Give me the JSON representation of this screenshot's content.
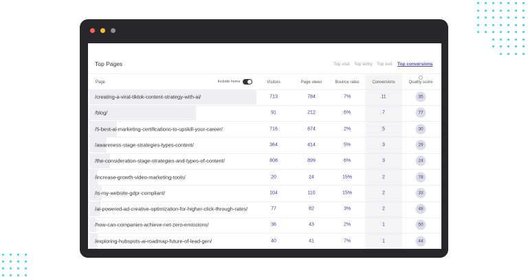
{
  "header": {
    "title": "Top Pages",
    "tabs": [
      "Top visit",
      "Top entry",
      "Top exit",
      "Top conversions"
    ],
    "toggle": "Include home"
  },
  "table": {
    "columns": [
      "Page",
      "Visitors",
      "Page views",
      "Bounce rates",
      "Conversions",
      "Quality score"
    ],
    "rows": [
      [
        "/creating-a-viral-tiktok-content-strategy-with-ai/",
        713,
        784,
        "7%",
        11,
        35
      ],
      [
        "/blog/",
        91,
        212,
        "6%",
        7,
        77
      ],
      [
        "/5-best-ai-marketing-certifications-to-upskill-your-career/",
        716,
        874,
        "2%",
        5,
        30
      ],
      [
        "/awareness-stage-strategies-types-content/",
        364,
        414,
        "5%",
        3,
        29
      ],
      [
        "/the-consideration-stage-strategies-and-types-of-content/",
        808,
        899,
        "6%",
        3,
        24
      ],
      [
        "/increase-growth-video-marketing-tools/",
        20,
        24,
        "15%",
        2,
        78
      ],
      [
        "/is-my-website-gdpr-compliant/",
        104,
        110,
        "15%",
        2,
        33
      ],
      [
        "/ai-powered-ad-creative-optimization-for-higher-click-through-rates/",
        77,
        82,
        "3%",
        2,
        48
      ],
      [
        "/how-can-companies-achieve-net-zero-emissions/",
        36,
        43,
        "2%",
        1,
        50
      ],
      [
        "/exploring-hubspots-ai-roadmap-future-of-lead-gen/",
        40,
        41,
        "7%",
        1,
        44
      ]
    ]
  }
}
